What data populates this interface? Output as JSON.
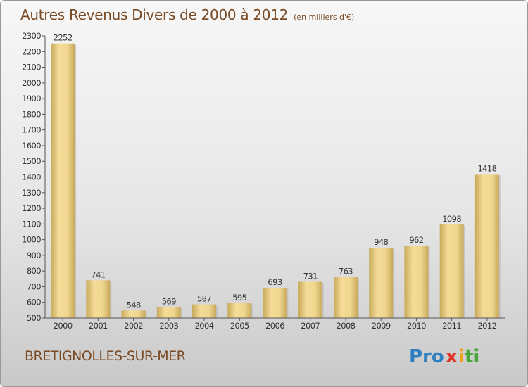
{
  "chart_data": {
    "type": "bar",
    "title": "Autres Revenus Divers de 2000 à 2012",
    "unit": "(en milliers d'€)",
    "categories": [
      "2000",
      "2001",
      "2002",
      "2003",
      "2004",
      "2005",
      "2006",
      "2007",
      "2008",
      "2009",
      "2010",
      "2011",
      "2012"
    ],
    "values": [
      2252,
      741,
      548,
      569,
      587,
      595,
      693,
      731,
      763,
      948,
      962,
      1098,
      1418
    ],
    "ylim": [
      500,
      2300
    ],
    "yticks": [
      500,
      600,
      700,
      800,
      900,
      1000,
      1100,
      1200,
      1300,
      1400,
      1500,
      1600,
      1700,
      1800,
      1900,
      2000,
      2100,
      2200,
      2300
    ],
    "grid": false,
    "bar_color": "#e8cf8a"
  },
  "commune": "BRETIGNOLLES-SUR-MER",
  "logo": {
    "p1": "Pro",
    "p2": "x",
    "p3": "i",
    "p4": "ti"
  }
}
